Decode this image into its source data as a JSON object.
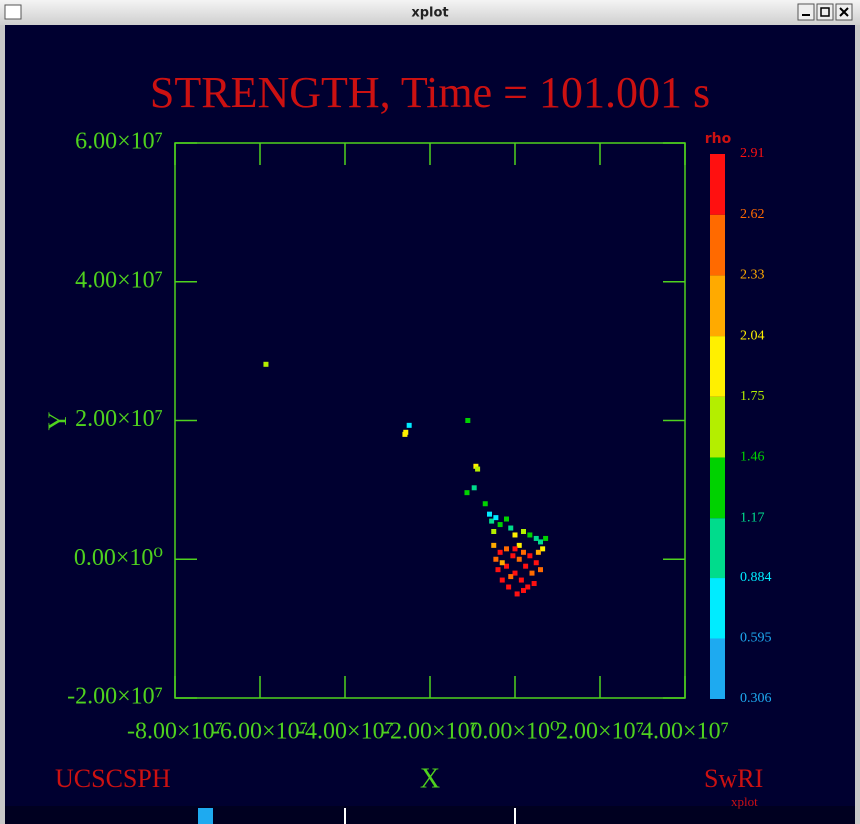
{
  "window_title": "xplot",
  "chart_data": {
    "type": "scatter",
    "title": "STRENGTH, Time = 101.001 s",
    "x_label": "X",
    "y_label": "Y",
    "xlim": [
      -80000000.0,
      40000000.0
    ],
    "ylim": [
      -20000000.0,
      60000000.0
    ],
    "xticks": [
      {
        "value": -80000000.0,
        "label": "-8.00×10⁷"
      },
      {
        "value": -60000000.0,
        "label": "-6.00×10⁷"
      },
      {
        "value": -40000000.0,
        "label": "-4.00×10⁷"
      },
      {
        "value": -20000000.0,
        "label": "-2.00×10⁷"
      },
      {
        "value": 0,
        "label": "0.00×10⁰"
      },
      {
        "value": 20000000.0,
        "label": "2.00×10⁷"
      },
      {
        "value": 40000000.0,
        "label": "4.00×10⁷"
      }
    ],
    "yticks": [
      {
        "value": -20000000.0,
        "label": "-2.00×10⁷"
      },
      {
        "value": 0,
        "label": "0.00×10⁰"
      },
      {
        "value": 20000000.0,
        "label": "2.00×10⁷"
      },
      {
        "value": 40000000.0,
        "label": "4.00×10⁷"
      },
      {
        "value": 60000000.0,
        "label": "6.00×10⁷"
      }
    ],
    "axis_color": "#4fd21e",
    "title_color": "#cc1111",
    "colorbar": {
      "label": "rho",
      "levels": [
        0.306,
        0.595,
        0.884,
        1.17,
        1.46,
        1.75,
        2.04,
        2.33,
        2.62,
        2.91
      ],
      "colors": [
        "#1eaaf0",
        "#00ecff",
        "#00dc8c",
        "#00d200",
        "#b4ee00",
        "#fff000",
        "#ffaa00",
        "#ff6a00",
        "#ff1010"
      ]
    },
    "series": [
      {
        "name": "rho",
        "x": [
          -5500000.0,
          -4500000.0,
          -3500000.0,
          -2000000.0,
          -1000000.0,
          2000000.0,
          3500000.0,
          5000000.0,
          6000000.0,
          7200000.0,
          6500000.0,
          -5000000.0,
          0.0,
          1000000.0,
          -5000000.0,
          -4500000.0,
          -4000000.0,
          -3500000.0,
          -3000000.0,
          -2000000.0,
          -2000000.0,
          -1500000.0,
          -500000.0,
          0.0,
          500000.0,
          1000000.0,
          1500000.0,
          2000000.0,
          2500000.0,
          3000000.0,
          3500000.0,
          4000000.0,
          5000000.0,
          5500000.0,
          4500000.0,
          -1000000.0,
          0.0,
          -3000000.0,
          6000000.0,
          2000000.0,
          -58600000.0,
          -24900000.0,
          -25900000.0,
          -25700000.0,
          -11100000.0,
          -9200000.0,
          -8800000.0,
          -11300000.0,
          -9600000.0,
          -7000000.0,
          -6000000.0
        ],
        "y": [
          5500000.0,
          6000000.0,
          5000000.0,
          5800000.0,
          4500000.0,
          4000000.0,
          3500000.0,
          3000000.0,
          2500000.0,
          3000000.0,
          1500000.0,
          4000000.0,
          3500000.0,
          2000000.0,
          2000000.0,
          0.0,
          -1500000.0,
          1000000.0,
          -3000000.0,
          1500000.0,
          -1000000.0,
          -4000000.0,
          500000.0,
          -2000000.0,
          -5000000.0,
          0.0,
          -3000000.0,
          1000000.0,
          -1000000.0,
          -4000000.0,
          500000.0,
          -2000000.0,
          -500000.0,
          1000000.0,
          -3500000.0,
          -2500000.0,
          1500000.0,
          -500000.0,
          -1500000.0,
          -4500000.0,
          28100000.0,
          19300000.0,
          18000000.0,
          18300000.0,
          20000000.0,
          13400000.0,
          13000000.0,
          9600000.0,
          10300000.0,
          8000000.0,
          6500000.0
        ],
        "values": [
          1.0,
          0.8,
          1.2,
          1.3,
          1.1,
          1.5,
          1.2,
          1.0,
          0.9,
          1.4,
          1.8,
          1.7,
          2.0,
          1.9,
          2.3,
          2.6,
          2.9,
          2.8,
          2.7,
          2.5,
          2.9,
          2.8,
          2.7,
          2.9,
          2.8,
          2.6,
          2.9,
          2.4,
          2.8,
          2.7,
          2.9,
          2.5,
          2.8,
          2.2,
          2.9,
          2.4,
          2.8,
          2.3,
          2.6,
          2.9,
          1.6,
          0.8,
          1.9,
          1.75,
          1.3,
          1.9,
          1.7,
          1.4,
          0.9,
          1.2,
          0.8
        ]
      }
    ]
  },
  "footer": {
    "left": "UCSCSPH",
    "right": "SwRI",
    "sub": "xplot"
  }
}
